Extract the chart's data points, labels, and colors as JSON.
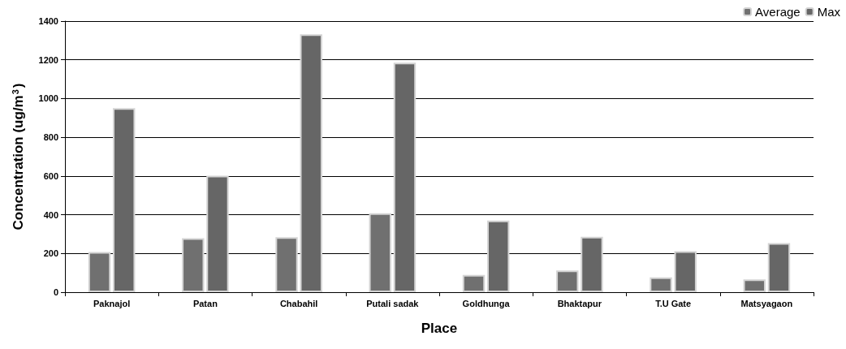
{
  "chart_data": {
    "type": "bar",
    "xlabel": "Place",
    "ylabel": "Concentration (ug/m$^{3}$)",
    "categories": [
      "Paknajol",
      "Patan",
      "Chabahil",
      "Putali sadak",
      "Goldhunga",
      "Bhaktapur",
      "T.U Gate",
      "Matsyagaon"
    ],
    "series": [
      {
        "name": "Average",
        "color": "#707070",
        "values": [
          207,
          279,
          284,
          408,
          89,
          112,
          77,
          66
        ]
      },
      {
        "name": "Max",
        "color": "#666666",
        "values": [
          950,
          601,
          1332,
          1185,
          370,
          286,
          212,
          254
        ]
      }
    ],
    "ylim": [
      0,
      1400
    ],
    "yticks": [
      0,
      200,
      400,
      600,
      800,
      1000,
      1200,
      1400
    ],
    "grid": "y",
    "legend": "top right"
  }
}
